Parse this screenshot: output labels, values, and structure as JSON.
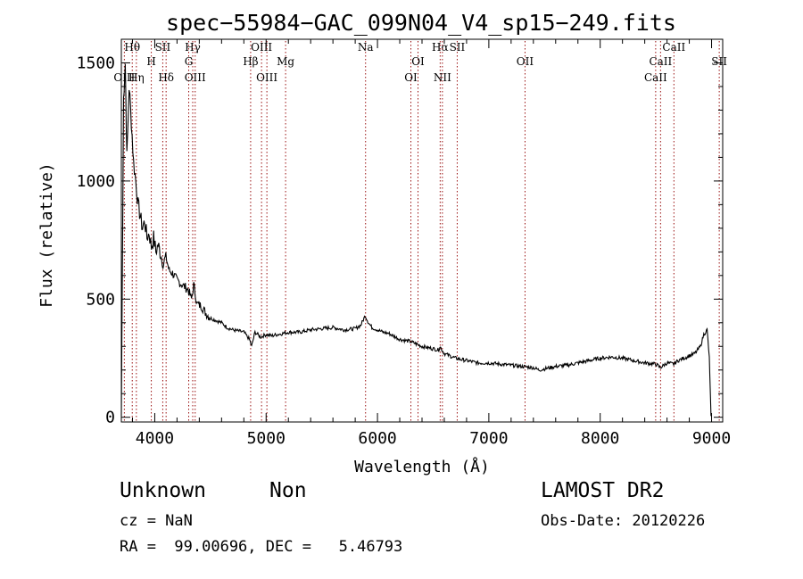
{
  "chart_data": {
    "type": "line",
    "title": "spec−55984−GAC_099N04_V4_sp15−249.fits",
    "xlabel": "Wavelength (Å)",
    "ylabel": "Flux (relative)",
    "xlim": [
      3700,
      9100
    ],
    "ylim": [
      -20,
      1600
    ],
    "xticks": [
      "4000",
      "5000",
      "6000",
      "7000",
      "8000",
      "9000"
    ],
    "yticks": [
      "0",
      "500",
      "1000",
      "1500"
    ],
    "grid": false,
    "series": [
      {
        "color": "#000000",
        "x": [
          3700,
          3720,
          3735,
          3750,
          3770,
          3790,
          3810,
          3830,
          3850,
          3870,
          3890,
          3910,
          3930,
          3950,
          3970,
          3990,
          4010,
          4030,
          4060,
          4080,
          4100,
          4130,
          4160,
          4200,
          4250,
          4300,
          4330,
          4350,
          4380,
          4420,
          4460,
          4500,
          4550,
          4600,
          4650,
          4700,
          4750,
          4800,
          4850,
          4870,
          4900,
          4950,
          5000,
          5050,
          5100,
          5150,
          5200,
          5300,
          5400,
          5500,
          5600,
          5700,
          5800,
          5850,
          5890,
          5920,
          5950,
          6000,
          6050,
          6100,
          6200,
          6300,
          6400,
          6500,
          6550,
          6560,
          6600,
          6700,
          6800,
          6900,
          7000,
          7100,
          7200,
          7300,
          7400,
          7450,
          7500,
          7600,
          7700,
          7800,
          7900,
          8000,
          8100,
          8200,
          8300,
          8400,
          8500,
          8540,
          8600,
          8660,
          8700,
          8800,
          8850,
          8900,
          8930,
          8960,
          8980,
          8995
        ],
        "y": [
          5,
          1350,
          1500,
          1100,
          1400,
          1250,
          1080,
          1000,
          900,
          850,
          800,
          830,
          760,
          780,
          720,
          760,
          700,
          730,
          680,
          650,
          680,
          620,
          610,
          580,
          560,
          540,
          500,
          560,
          480,
          470,
          440,
          420,
          410,
          400,
          380,
          370,
          365,
          360,
          330,
          300,
          360,
          340,
          350,
          345,
          350,
          355,
          360,
          360,
          370,
          375,
          380,
          370,
          375,
          390,
          430,
          400,
          380,
          370,
          360,
          355,
          330,
          320,
          300,
          290,
          285,
          300,
          270,
          250,
          240,
          230,
          230,
          225,
          220,
          215,
          210,
          200,
          205,
          215,
          220,
          230,
          240,
          250,
          255,
          250,
          240,
          230,
          225,
          210,
          230,
          225,
          240,
          260,
          270,
          300,
          350,
          370,
          250,
          5
        ]
      }
    ],
    "lines": [
      {
        "name": "Hθ",
        "x": 3798,
        "row": 1
      },
      {
        "name": "OIII",
        "x": 3727,
        "row": 3
      },
      {
        "name": "Hη",
        "x": 3835,
        "row": 3
      },
      {
        "name": "SII",
        "x": 4072,
        "row": 1
      },
      {
        "name": "H",
        "x": 3969,
        "row": 2
      },
      {
        "name": "Hδ",
        "x": 4102,
        "row": 3
      },
      {
        "name": "Hγ",
        "x": 4341,
        "row": 1
      },
      {
        "name": "G",
        "x": 4305,
        "row": 2
      },
      {
        "name": "OIII",
        "x": 4363,
        "row": 3
      },
      {
        "name": "OIII",
        "x": 4959,
        "row": 1
      },
      {
        "name": "Hβ",
        "x": 4861,
        "row": 2
      },
      {
        "name": "Mg",
        "x": 5175,
        "row": 2
      },
      {
        "name": "OIII",
        "x": 5007,
        "row": 3
      },
      {
        "name": "Na",
        "x": 5893,
        "row": 1
      },
      {
        "name": "OI",
        "x": 6364,
        "row": 2
      },
      {
        "name": "OI",
        "x": 6300,
        "row": 3
      },
      {
        "name": "Hα",
        "x": 6563,
        "row": 1
      },
      {
        "name": "SII",
        "x": 6716,
        "row": 1
      },
      {
        "name": "NII",
        "x": 6583,
        "row": 3
      },
      {
        "name": "OII",
        "x": 7325,
        "row": 2
      },
      {
        "name": "SII",
        "x": 9069,
        "row": 2
      },
      {
        "name": "CaII",
        "x": 8662,
        "row": 1
      },
      {
        "name": "CaII",
        "x": 8542,
        "row": 2
      },
      {
        "name": "CaII",
        "x": 8498,
        "row": 3
      }
    ]
  },
  "info": {
    "class": "Unknown",
    "subclass": "Non",
    "survey": "LAMOST DR2",
    "cz": "cz = NaN",
    "obs_date": "Obs-Date: 20120226",
    "radec": "RA =  99.00696, DEC =   5.46793"
  }
}
